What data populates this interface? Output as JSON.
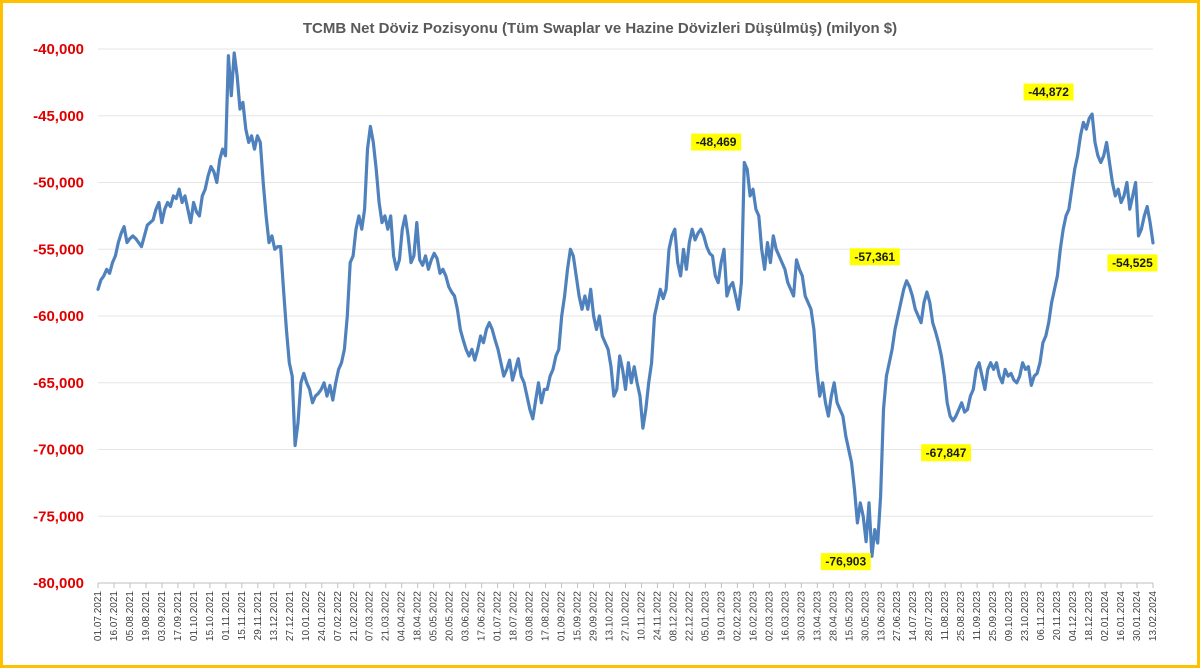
{
  "chart_data": {
    "type": "line",
    "title": "TCMB Net Döviz Pozisyonu (Tüm Swaplar ve Hazine Dövizleri Düşülmüş) (milyon $)",
    "xlabel": "",
    "ylabel": "",
    "ylim": [
      -80000,
      -40000
    ],
    "y_ticks": [
      "-40,000",
      "-45,000",
      "-50,000",
      "-55,000",
      "-60,000",
      "-65,000",
      "-70,000",
      "-75,000",
      "-80,000"
    ],
    "y_tick_values": [
      -40000,
      -45000,
      -50000,
      -55000,
      -60000,
      -65000,
      -70000,
      -75000,
      -80000
    ],
    "x_ticks": [
      "01.07.2021",
      "16.07.2021",
      "05.08.2021",
      "19.08.2021",
      "03.09.2021",
      "17.09.2021",
      "01.10.2021",
      "15.10.2021",
      "01.11.2021",
      "15.11.2021",
      "29.11.2021",
      "13.12.2021",
      "27.12.2021",
      "10.01.2022",
      "24.01.2022",
      "07.02.2022",
      "21.02.2022",
      "07.03.2022",
      "21.03.2022",
      "04.04.2022",
      "18.04.2022",
      "05.05.2022",
      "20.05.2022",
      "03.06.2022",
      "17.06.2022",
      "01.07.2022",
      "18.07.2022",
      "03.08.2022",
      "17.08.2022",
      "01.09.2022",
      "15.09.2022",
      "29.09.2022",
      "13.10.2022",
      "27.10.2022",
      "10.11.2022",
      "24.11.2022",
      "08.12.2022",
      "22.12.2022",
      "05.01.2023",
      "19.01.2023",
      "02.02.2023",
      "16.02.2023",
      "02.03.2023",
      "16.03.2023",
      "30.03.2023",
      "13.04.2023",
      "28.04.2023",
      "15.05.2023",
      "30.05.2023",
      "13.06.2023",
      "27.06.2023",
      "14.07.2023",
      "28.07.2023",
      "11.08.2023",
      "25.08.2023",
      "11.09.2023",
      "25.09.2023",
      "09.10.2023",
      "23.10.2023",
      "06.11.2023",
      "20.11.2023",
      "04.12.2023",
      "18.12.2023",
      "02.01.2024",
      "16.01.2024",
      "30.01.2024",
      "13.02.2024"
    ],
    "series": [
      {
        "color": "#4F81BD",
        "values": [
          -58000,
          -57300,
          -57000,
          -56500,
          -56800,
          -56000,
          -55500,
          -54500,
          -53800,
          -53300,
          -54500,
          -54200,
          -54000,
          -54200,
          -54500,
          -54800,
          -54000,
          -53200,
          -53000,
          -52800,
          -52000,
          -51500,
          -53000,
          -52000,
          -51500,
          -51800,
          -51000,
          -51200,
          -50500,
          -51500,
          -51000,
          -52000,
          -53000,
          -51500,
          -52200,
          -52500,
          -51000,
          -50500,
          -49500,
          -48800,
          -49200,
          -50000,
          -48300,
          -47500,
          -48000,
          -40500,
          -43500,
          -40300,
          -42000,
          -44500,
          -44000,
          -46000,
          -47000,
          -46500,
          -47500,
          -46500,
          -47000,
          -50000,
          -52500,
          -54500,
          -54000,
          -55000,
          -54800,
          -54800,
          -58000,
          -61000,
          -63500,
          -64500,
          -69700,
          -68000,
          -65000,
          -64300,
          -65000,
          -65500,
          -66500,
          -66000,
          -65800,
          -65500,
          -65000,
          -66000,
          -65200,
          -66300,
          -65000,
          -64000,
          -63500,
          -62500,
          -60000,
          -56000,
          -55500,
          -53500,
          -52500,
          -53500,
          -52000,
          -47500,
          -45800,
          -47000,
          -49000,
          -51500,
          -53000,
          -52500,
          -53500,
          -52500,
          -55500,
          -56500,
          -55800,
          -53500,
          -52500,
          -54000,
          -56000,
          -55500,
          -53000,
          -55800,
          -56200,
          -55500,
          -56500,
          -55800,
          -55300,
          -55700,
          -56800,
          -56500,
          -57000,
          -57800,
          -58200,
          -58500,
          -59500,
          -61000,
          -61800,
          -62500,
          -63000,
          -62500,
          -63300,
          -62500,
          -61500,
          -62000,
          -61000,
          -60500,
          -61000,
          -61800,
          -62500,
          -63500,
          -64500,
          -64000,
          -63300,
          -64800,
          -64000,
          -63200,
          -64500,
          -65000,
          -66000,
          -67000,
          -67700,
          -66300,
          -65000,
          -66500,
          -65500,
          -65500,
          -64500,
          -64000,
          -63000,
          -62500,
          -60000,
          -58500,
          -56500,
          -55000,
          -55500,
          -57000,
          -58500,
          -59500,
          -58500,
          -59500,
          -58000,
          -60000,
          -61000,
          -60000,
          -61500,
          -62000,
          -62500,
          -63800,
          -66000,
          -65500,
          -63000,
          -64000,
          -65500,
          -63500,
          -65000,
          -63800,
          -65000,
          -66000,
          -68400,
          -67000,
          -65000,
          -63500,
          -60000,
          -59000,
          -58000,
          -58700,
          -58000,
          -55000,
          -54000,
          -53500,
          -56000,
          -57000,
          -55000,
          -56500,
          -54500,
          -53500,
          -54300,
          -53800,
          -53500,
          -54000,
          -54800,
          -55300,
          -55500,
          -57000,
          -57500,
          -56000,
          -55000,
          -58500,
          -57800,
          -57500,
          -58500,
          -59500,
          -57500,
          -48500,
          -49000,
          -51000,
          -50500,
          -52000,
          -52500,
          -55000,
          -56500,
          -54500,
          -56000,
          -54000,
          -55000,
          -55500,
          -56000,
          -56500,
          -57500,
          -58000,
          -58500,
          -55800,
          -56500,
          -57000,
          -58500,
          -59000,
          -59500,
          -61000,
          -64000,
          -66000,
          -65000,
          -66500,
          -67500,
          -66000,
          -65000,
          -66500,
          -67000,
          -67500,
          -69000,
          -70000,
          -71000,
          -73000,
          -75500,
          -74000,
          -75000,
          -76900,
          -74000,
          -78000,
          -76000,
          -77000,
          -73500,
          -67000,
          -64500,
          -63500,
          -62500,
          -61000,
          -60000,
          -59000,
          -58000,
          -57361,
          -57800,
          -58500,
          -59500,
          -60000,
          -60500,
          -59000,
          -58200,
          -59000,
          -60500,
          -61200,
          -62000,
          -63000,
          -64500,
          -66500,
          -67500,
          -67847,
          -67500,
          -67000,
          -66500,
          -67200,
          -67000,
          -66000,
          -65500,
          -64000,
          -63500,
          -64500,
          -65500,
          -64000,
          -63500,
          -64000,
          -63500,
          -64500,
          -65000,
          -64000,
          -64500,
          -64300,
          -64800,
          -65000,
          -64500,
          -63500,
          -64000,
          -63800,
          -65200,
          -64500,
          -64300,
          -63500,
          -62000,
          -61500,
          -60500,
          -59000,
          -58000,
          -57000,
          -55000,
          -53500,
          -52500,
          -52000,
          -50500,
          -49000,
          -48000,
          -46500,
          -45500,
          -46000,
          -45200,
          -44872,
          -47000,
          -48000,
          -48500,
          -48000,
          -47000,
          -48500,
          -50000,
          -51000,
          -50500,
          -51500,
          -51000,
          -50000,
          -52000,
          -51000,
          -50000,
          -54000,
          -53500,
          -52500,
          -51800,
          -53000,
          -54525
        ]
      }
    ],
    "annotations": [
      {
        "label": "-48,469",
        "x_index": 215,
        "value": -48469
      },
      {
        "label": "-57,361",
        "x_index": 268,
        "value": -57361
      },
      {
        "label": "-76,903",
        "x_index": 258,
        "value": -76903
      },
      {
        "label": "-67,847",
        "x_index": 285,
        "value": -67847
      },
      {
        "label": "-44,872",
        "x_index": 329,
        "value": -44872
      },
      {
        "label": "-54,525",
        "x_index": 350,
        "value": -54525
      }
    ],
    "grid": true,
    "legend": "none"
  }
}
